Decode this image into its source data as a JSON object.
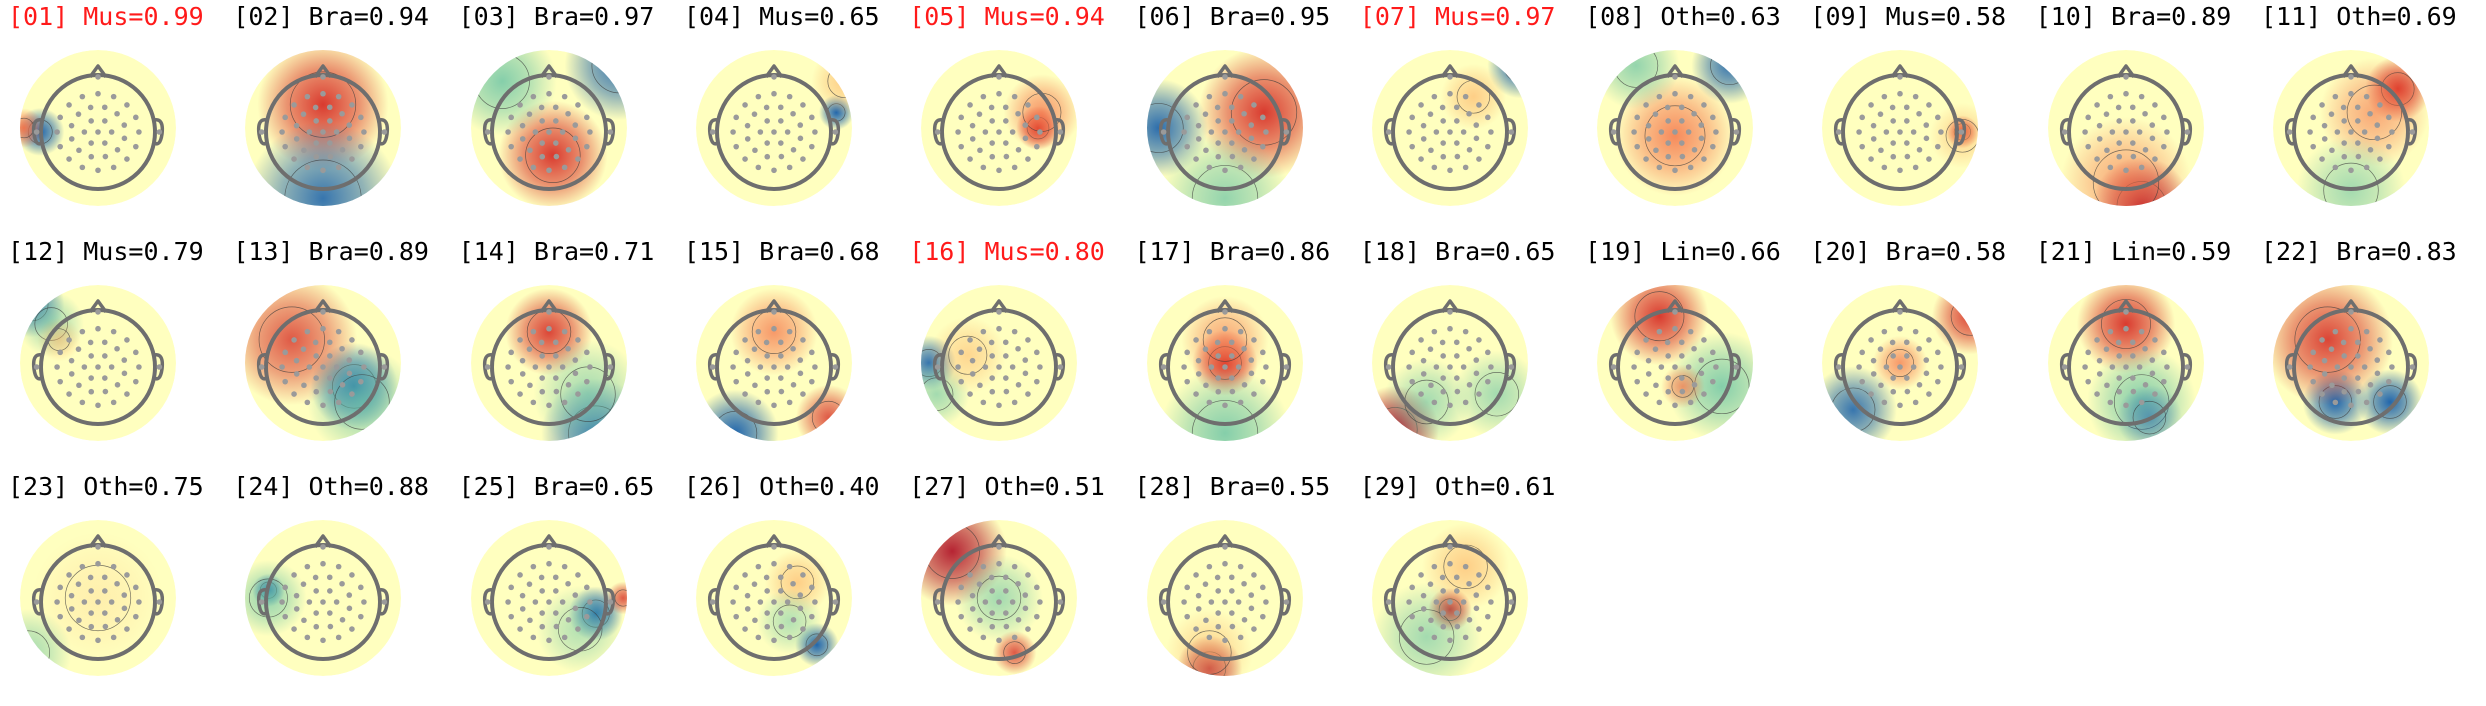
{
  "components": [
    {
      "label": "[01] Mus=0.99",
      "flagged": true,
      "blobs": [
        [
          "#2166ac",
          -0.74,
          0.05,
          0.22,
          1
        ],
        [
          "#f46d43",
          -0.95,
          0.0,
          0.18,
          0.9
        ]
      ]
    },
    {
      "label": "[02] Bra=0.94",
      "flagged": false,
      "blobs": [
        [
          "#d73027",
          0.0,
          -0.3,
          0.6,
          0.95
        ],
        [
          "#2166ac",
          0,
          0.9,
          0.7,
          0.9
        ]
      ]
    },
    {
      "label": "[03] Bra=0.97",
      "flagged": false,
      "blobs": [
        [
          "#d73027",
          0.05,
          0.35,
          0.5,
          0.95
        ],
        [
          "#2166ac",
          0.9,
          -0.8,
          0.5,
          0.9
        ],
        [
          "#66c2a5",
          -0.6,
          -0.6,
          0.5,
          0.8
        ]
      ]
    },
    {
      "label": "[04] Mus=0.65",
      "flagged": false,
      "blobs": [
        [
          "#2166ac",
          0.8,
          -0.2,
          0.16,
          1
        ],
        [
          "#fdae61",
          0.9,
          -0.6,
          0.3,
          0.6
        ]
      ]
    },
    {
      "label": "[05] Mus=0.94",
      "flagged": true,
      "blobs": [
        [
          "#d73027",
          0.5,
          0.0,
          0.2,
          1
        ],
        [
          "#f46d43",
          0.55,
          -0.2,
          0.35,
          0.7
        ]
      ]
    },
    {
      "label": "[06] Bra=0.95",
      "flagged": false,
      "blobs": [
        [
          "#d73027",
          0.5,
          -0.2,
          0.6,
          0.95
        ],
        [
          "#2166ac",
          -0.85,
          0.0,
          0.45,
          0.95
        ],
        [
          "#66c2a5",
          0,
          0.9,
          0.6,
          0.7
        ]
      ]
    },
    {
      "label": "[07] Mus=0.97",
      "flagged": true,
      "blobs": [
        [
          "#2166ac",
          0.9,
          -0.8,
          0.3,
          1
        ],
        [
          "#fdae61",
          0.3,
          -0.4,
          0.3,
          0.6
        ]
      ]
    },
    {
      "label": "[08] Oth=0.63",
      "flagged": false,
      "blobs": [
        [
          "#f46d43",
          0.0,
          0.1,
          0.55,
          0.8
        ],
        [
          "#2166ac",
          0.7,
          -0.8,
          0.35,
          0.9
        ],
        [
          "#66c2a5",
          -0.5,
          -0.8,
          0.4,
          0.7
        ]
      ]
    },
    {
      "label": "[09] Mus=0.58",
      "flagged": false,
      "blobs": [
        [
          "#d73027",
          0.8,
          0.05,
          0.15,
          1
        ],
        [
          "#fdae61",
          0.8,
          0.1,
          0.3,
          0.5
        ]
      ]
    },
    {
      "label": "[10] Bra=0.89",
      "flagged": false,
      "blobs": [
        [
          "#b2182b",
          0.2,
          1.0,
          0.45,
          1
        ],
        [
          "#f46d43",
          0,
          0.7,
          0.6,
          0.6
        ]
      ]
    },
    {
      "label": "[11] Oth=0.69",
      "flagged": false,
      "blobs": [
        [
          "#d73027",
          0.6,
          -0.5,
          0.3,
          1
        ],
        [
          "#f46d43",
          0.3,
          -0.2,
          0.5,
          0.6
        ],
        [
          "#66c2a5",
          0,
          0.8,
          0.5,
          0.6
        ]
      ]
    },
    {
      "label": "[12] Mus=0.79",
      "flagged": false,
      "blobs": [
        [
          "#2166ac",
          -0.85,
          -0.75,
          0.3,
          0.9
        ],
        [
          "#66c2a5",
          -0.6,
          -0.5,
          0.3,
          0.6
        ],
        [
          "#fdae61",
          -0.5,
          -0.3,
          0.2,
          0.5
        ]
      ]
    },
    {
      "label": "[13] Bra=0.89",
      "flagged": false,
      "blobs": [
        [
          "#2166ac",
          0.4,
          0.3,
          0.4,
          1
        ],
        [
          "#d73027",
          -0.4,
          -0.3,
          0.6,
          0.8
        ],
        [
          "#66c2a5",
          0.5,
          0.5,
          0.5,
          0.7
        ]
      ]
    },
    {
      "label": "[14] Bra=0.71",
      "flagged": false,
      "blobs": [
        [
          "#d73027",
          0.0,
          -0.4,
          0.4,
          0.9
        ],
        [
          "#2166ac",
          0.6,
          0.9,
          0.5,
          0.9
        ],
        [
          "#66c2a5",
          0.5,
          0.4,
          0.5,
          0.6
        ]
      ]
    },
    {
      "label": "[15] Bra=0.68",
      "flagged": false,
      "blobs": [
        [
          "#2166ac",
          -0.5,
          0.9,
          0.4,
          1
        ],
        [
          "#d73027",
          0.7,
          0.7,
          0.3,
          0.8
        ],
        [
          "#f46d43",
          0,
          -0.4,
          0.4,
          0.7
        ]
      ]
    },
    {
      "label": "[16] Mus=0.80",
      "flagged": true,
      "blobs": [
        [
          "#2166ac",
          -0.9,
          0.0,
          0.25,
          0.9
        ],
        [
          "#66c2a5",
          -0.8,
          0.4,
          0.3,
          0.6
        ],
        [
          "#fdae61",
          -0.4,
          -0.1,
          0.35,
          0.5
        ]
      ]
    },
    {
      "label": "[17] Bra=0.86",
      "flagged": false,
      "blobs": [
        [
          "#d73027",
          0.0,
          0.0,
          0.3,
          1
        ],
        [
          "#66c2a5",
          0,
          0.9,
          0.6,
          0.8
        ],
        [
          "#f46d43",
          0,
          -0.3,
          0.4,
          0.6
        ]
      ]
    },
    {
      "label": "[18] Bra=0.65",
      "flagged": false,
      "blobs": [
        [
          "#b2182b",
          -0.7,
          0.85,
          0.4,
          1
        ],
        [
          "#66c2a5",
          -0.3,
          0.5,
          0.4,
          0.6
        ],
        [
          "#66c2a5",
          0.6,
          0.4,
          0.4,
          0.6
        ]
      ]
    },
    {
      "label": "[19] Lin=0.66",
      "flagged": false,
      "blobs": [
        [
          "#d73027",
          -0.2,
          -0.6,
          0.45,
          0.95
        ],
        [
          "#66c2a5",
          0.6,
          0.3,
          0.5,
          0.8
        ],
        [
          "#f46d43",
          0.1,
          0.3,
          0.2,
          0.7
        ]
      ]
    },
    {
      "label": "[20] Bra=0.58",
      "flagged": false,
      "blobs": [
        [
          "#2166ac",
          -0.6,
          0.6,
          0.4,
          0.9
        ],
        [
          "#d73027",
          0.9,
          -0.6,
          0.35,
          0.9
        ],
        [
          "#f46d43",
          0.0,
          0.0,
          0.25,
          0.7
        ]
      ]
    },
    {
      "label": "[21] Lin=0.59",
      "flagged": false,
      "blobs": [
        [
          "#d73027",
          0.0,
          -0.5,
          0.45,
          0.95
        ],
        [
          "#66c2a5",
          0.2,
          0.5,
          0.5,
          0.8
        ],
        [
          "#2166ac",
          0.3,
          0.7,
          0.3,
          0.6
        ]
      ]
    },
    {
      "label": "[22] Bra=0.83",
      "flagged": false,
      "blobs": [
        [
          "#2166ac",
          -0.2,
          0.5,
          0.3,
          1
        ],
        [
          "#2166ac",
          0.5,
          0.5,
          0.3,
          1
        ],
        [
          "#d73027",
          -0.3,
          -0.3,
          0.6,
          0.9
        ]
      ]
    },
    {
      "label": "[23] Oth=0.75",
      "flagged": false,
      "blobs": [
        [
          "#66c2a5",
          -0.9,
          0.7,
          0.4,
          0.6
        ],
        [
          "#fdae61",
          0,
          0,
          0.6,
          0.2
        ]
      ]
    },
    {
      "label": "[24] Oth=0.88",
      "flagged": false,
      "blobs": [
        [
          "#2166ac",
          -0.7,
          -0.1,
          0.15,
          1
        ],
        [
          "#66c2a5",
          -0.7,
          0.0,
          0.35,
          0.7
        ]
      ]
    },
    {
      "label": "[25] Bra=0.65",
      "flagged": false,
      "blobs": [
        [
          "#2166ac",
          0.6,
          0.2,
          0.25,
          1
        ],
        [
          "#d73027",
          0.95,
          0.0,
          0.15,
          0.8
        ],
        [
          "#66c2a5",
          0.4,
          0.4,
          0.4,
          0.5
        ]
      ]
    },
    {
      "label": "[26] Oth=0.40",
      "flagged": false,
      "blobs": [
        [
          "#2166ac",
          0.55,
          0.6,
          0.2,
          1
        ],
        [
          "#fdae61",
          0.3,
          -0.2,
          0.3,
          0.6
        ],
        [
          "#66c2a5",
          0.2,
          0.3,
          0.3,
          0.5
        ]
      ]
    },
    {
      "label": "[27] Oth=0.51",
      "flagged": false,
      "blobs": [
        [
          "#b2182b",
          -0.6,
          -0.6,
          0.5,
          0.95
        ],
        [
          "#d73027",
          0.2,
          0.7,
          0.2,
          0.8
        ],
        [
          "#66c2a5",
          0.0,
          0.0,
          0.4,
          0.6
        ]
      ]
    },
    {
      "label": "[28] Bra=0.55",
      "flagged": false,
      "blobs": [
        [
          "#b2182b",
          -0.2,
          0.9,
          0.3,
          0.9
        ],
        [
          "#fdae61",
          -0.2,
          0.7,
          0.4,
          0.5
        ]
      ]
    },
    {
      "label": "[29] Oth=0.61",
      "flagged": false,
      "blobs": [
        [
          "#d73027",
          0.0,
          0.15,
          0.2,
          1
        ],
        [
          "#66c2a5",
          -0.3,
          0.5,
          0.5,
          0.6
        ],
        [
          "#fdae61",
          0.2,
          -0.4,
          0.4,
          0.6
        ]
      ]
    }
  ],
  "colors": {
    "flagged_label": "#ff1a1a",
    "normal_label": "#000000",
    "head_base": "#ffffbf",
    "head_outline": "#6e6e6e",
    "electrode": "#9a9a9a"
  }
}
